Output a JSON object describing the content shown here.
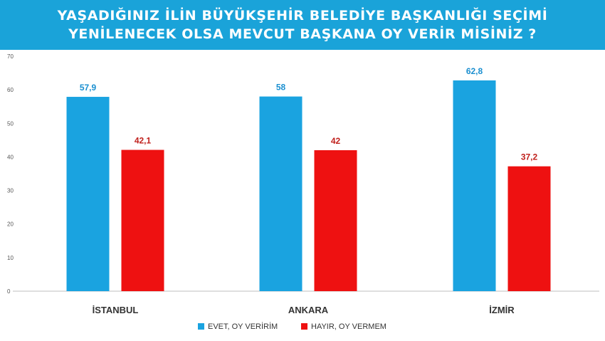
{
  "title": {
    "line1": "YAŞADIĞINIZ İLİN BÜYÜKŞEHİR BELEDİYE BAŞKANLIĞI SEÇİMİ",
    "line2": "YENİLENECEK OLSA MEVCUT BAŞKANA OY VERİR MİSİNİZ ?"
  },
  "colors": {
    "title_bg": "#1aa3d9",
    "evet": "#1aa3e0",
    "hayir": "#ee1111",
    "evet_label": "#1a8fd0",
    "hayir_label": "#c0201c"
  },
  "chart_data": {
    "type": "bar",
    "categories": [
      "İSTANBUL",
      "ANKARA",
      "İZMİR"
    ],
    "series": [
      {
        "name": "EVET, OY VERİRİM",
        "values": [
          57.9,
          58,
          62.8
        ],
        "labels": [
          "57,9",
          "58",
          "62,8"
        ]
      },
      {
        "name": "HAYIR, OY VERMEM",
        "values": [
          42.1,
          42,
          37.2
        ],
        "labels": [
          "42,1",
          "42",
          "37,2"
        ]
      }
    ],
    "ylim": [
      0,
      70
    ],
    "yticks": [
      0,
      10,
      20,
      30,
      40,
      50,
      60,
      70
    ],
    "grid": false,
    "legend": "bottom-center"
  }
}
